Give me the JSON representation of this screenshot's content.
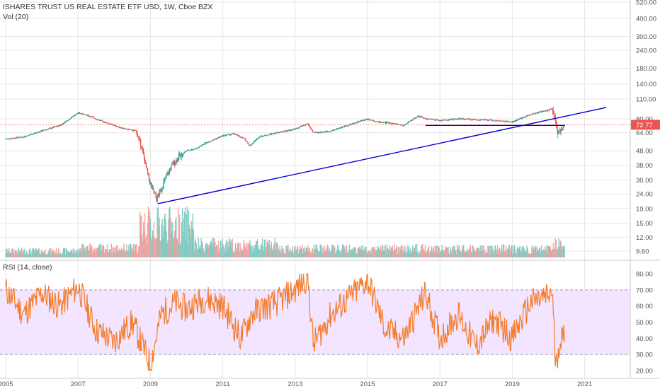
{
  "header": {
    "title": "ISHARES TRUST US REAL ESTATE ETF USD, 1W, Cboe BZX",
    "volume_label": "Vol (20)",
    "rsi_label": "RSI (14, close)"
  },
  "colors": {
    "up": "#26a69a",
    "down": "#ef5350",
    "vol_up": "#80cbc4",
    "vol_down": "#f4a3a0",
    "trendline": "#0000cc",
    "rsi_line": "#f57c2b",
    "rsi_band": "#f3e5ff",
    "last_price_bg": "#ef5350",
    "grid": "#e6e6e6"
  },
  "price_axis": {
    "scale": "log",
    "ticks": [
      "520.00",
      "400.00",
      "300.00",
      "240.00",
      "180.00",
      "140.00",
      "110.00",
      "80.00",
      "64.00",
      "48.00",
      "38.00",
      "30.00",
      "24.00",
      "19.00",
      "15.00",
      "12.00",
      "9.60"
    ],
    "last_price_label": "72.77",
    "last_price": 72.77
  },
  "rsi_axis": {
    "ticks": [
      "80.00",
      "70.00",
      "60.00",
      "50.00",
      "40.00",
      "30.00",
      "20.00"
    ],
    "upper_band": 70,
    "lower_band": 30
  },
  "time_axis": {
    "ticks": [
      "2005",
      "2007",
      "2009",
      "2011",
      "2013",
      "2015",
      "2017",
      "2019",
      "2021"
    ]
  },
  "chart_data": {
    "type": "candlestick",
    "title": "ISHARES TRUST US REAL ESTATE ETF USD, 1W, Cboe BZX",
    "price_series": {
      "name": "",
      "x": [
        2005.0,
        2005.5,
        2006.0,
        2006.5,
        2007.0,
        2007.3,
        2007.6,
        2008.0,
        2008.3,
        2008.6,
        2008.75,
        2008.9,
        2009.0,
        2009.17,
        2009.4,
        2009.6,
        2009.8,
        2010.0,
        2010.3,
        2010.5,
        2010.8,
        2011.0,
        2011.3,
        2011.6,
        2011.75,
        2012.0,
        2012.5,
        2013.0,
        2013.35,
        2013.5,
        2013.8,
        2014.0,
        2014.5,
        2015.0,
        2015.3,
        2015.6,
        2016.0,
        2016.4,
        2016.6,
        2017.0,
        2017.5,
        2018.0,
        2018.5,
        2019.0,
        2019.5,
        2020.0,
        2020.1,
        2020.2,
        2020.25,
        2020.35,
        2020.45
      ],
      "close": [
        58,
        60,
        66,
        72,
        88,
        84,
        78,
        72,
        68,
        66,
        52,
        35,
        28,
        22,
        30,
        38,
        44,
        48,
        50,
        54,
        58,
        61,
        63,
        58,
        52,
        60,
        64,
        68,
        74,
        64,
        65,
        66,
        73,
        80,
        76,
        75,
        72,
        84,
        80,
        78,
        80,
        79,
        78,
        76,
        86,
        92,
        94,
        75,
        62,
        68,
        72.77
      ]
    },
    "volume_series": {
      "name": "Vol (20)"
    },
    "rsi_series": {
      "name": "RSI (14, close)",
      "x": [
        2005.0,
        2005.5,
        2006.0,
        2006.5,
        2007.0,
        2007.5,
        2008.0,
        2008.5,
        2009.0,
        2009.3,
        2009.7,
        2010.0,
        2010.5,
        2011.0,
        2011.5,
        2011.8,
        2012.0,
        2012.5,
        2013.0,
        2013.35,
        2013.5,
        2014.0,
        2014.5,
        2015.0,
        2015.5,
        2016.0,
        2016.6,
        2017.0,
        2017.5,
        2018.0,
        2018.5,
        2019.0,
        2019.5,
        2020.0,
        2020.1,
        2020.2,
        2020.3,
        2020.45
      ],
      "y": [
        70,
        55,
        68,
        60,
        72,
        45,
        38,
        50,
        24,
        55,
        62,
        58,
        65,
        60,
        40,
        55,
        58,
        62,
        70,
        78,
        36,
        55,
        65,
        76,
        45,
        40,
        68,
        40,
        55,
        35,
        52,
        40,
        62,
        66,
        70,
        22,
        38,
        42
      ]
    },
    "trendlines": [
      {
        "from": {
          "x": 2009.2,
          "y": 20.5
        },
        "to": {
          "x": 2021.6,
          "y": 96
        }
      },
      {
        "from": {
          "x": 2016.6,
          "y": 72
        },
        "to": {
          "x": 2020.45,
          "y": 72
        }
      }
    ],
    "rsi_bands": [
      30,
      70
    ],
    "xlim": [
      2004.9,
      2022.0
    ],
    "ylim": [
      8.5,
      560
    ],
    "yscale": "log",
    "grid": true
  }
}
